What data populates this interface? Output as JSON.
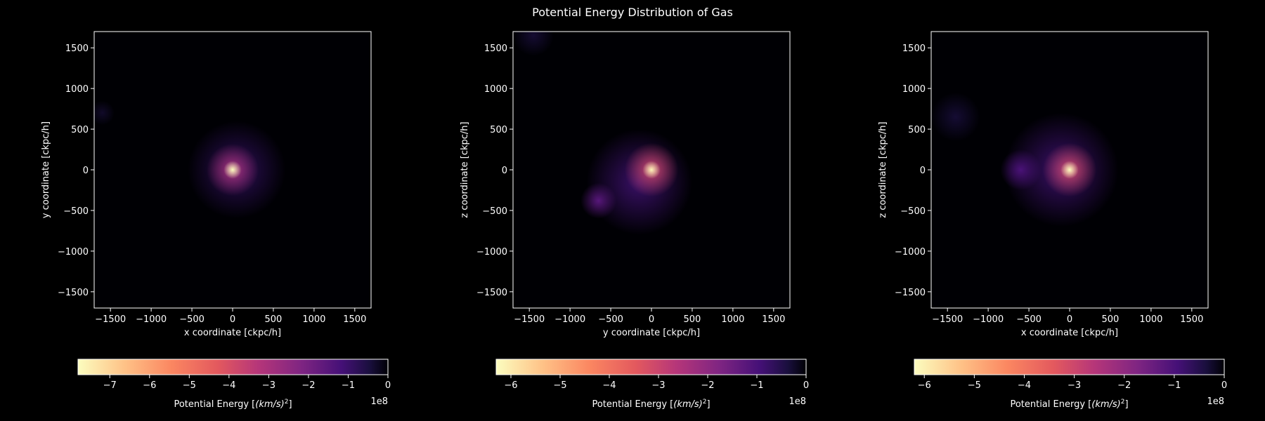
{
  "figure": {
    "title": "Potential Energy Distribution of Gas",
    "background": "#000000",
    "colormap": "magma"
  },
  "chart_data": [
    {
      "type": "heatmap",
      "xlabel": "x coordinate [ckpc/h]",
      "ylabel": "y coordinate [ckpc/h]",
      "xlim": [
        -1700,
        1700
      ],
      "ylim": [
        -1700,
        1700
      ],
      "xticks": [
        -1500,
        -1000,
        -500,
        0,
        500,
        1000,
        1500
      ],
      "yticks": [
        -1500,
        -1000,
        -500,
        0,
        500,
        1000,
        1500
      ],
      "grid": false,
      "blobs": [
        {
          "x": 0,
          "y": 0,
          "r": 110,
          "value": -7.8
        },
        {
          "x": 0,
          "y": 0,
          "r": 320,
          "value": -3.0
        },
        {
          "x": 50,
          "y": 0,
          "r": 600,
          "value": -0.8
        },
        {
          "x": -1600,
          "y": 700,
          "r": 150,
          "value": -0.3
        }
      ],
      "colorbar": {
        "label": "Potential Energy [$(km/s)^2$]",
        "label_text": "Potential Energy [",
        "label_italic": "(km/s)",
        "label_sup": "2",
        "label_close": "]",
        "min": -7.8,
        "max": 0,
        "ticks": [
          -7,
          -6,
          -5,
          -4,
          -3,
          -2,
          -1,
          0
        ],
        "multiplier": "1e8"
      }
    },
    {
      "type": "heatmap",
      "xlabel": "y coordinate [ckpc/h]",
      "ylabel": "z coordinate [ckpc/h]",
      "xlim": [
        -1700,
        1700
      ],
      "ylim": [
        -1700,
        1700
      ],
      "xticks": [
        -1500,
        -1000,
        -500,
        0,
        500,
        1000,
        1500
      ],
      "yticks": [
        -1500,
        -1000,
        -500,
        0,
        500,
        1000,
        1500
      ],
      "grid": false,
      "blobs": [
        {
          "x": 0,
          "y": 0,
          "r": 110,
          "value": -6.2
        },
        {
          "x": 0,
          "y": 0,
          "r": 330,
          "value": -3.0
        },
        {
          "x": -650,
          "y": -380,
          "r": 220,
          "value": -1.2
        },
        {
          "x": -150,
          "y": -150,
          "r": 650,
          "value": -0.8
        },
        {
          "x": -1450,
          "y": 1650,
          "r": 250,
          "value": -0.3
        }
      ],
      "colorbar": {
        "label": "Potential Energy [$(km/s)^2$]",
        "label_text": "Potential Energy [",
        "label_italic": "(km/s)",
        "label_sup": "2",
        "label_close": "]",
        "min": -6.3,
        "max": 0,
        "ticks": [
          -6,
          -5,
          -4,
          -3,
          -2,
          -1,
          0
        ],
        "multiplier": "1e8"
      }
    },
    {
      "type": "heatmap",
      "xlabel": "x coordinate [ckpc/h]",
      "ylabel": "z coordinate [ckpc/h]",
      "xlim": [
        -1700,
        1700
      ],
      "ylim": [
        -1700,
        1700
      ],
      "xticks": [
        -1500,
        -1000,
        -500,
        0,
        500,
        1000,
        1500
      ],
      "yticks": [
        -1500,
        -1000,
        -500,
        0,
        500,
        1000,
        1500
      ],
      "grid": false,
      "blobs": [
        {
          "x": 0,
          "y": 0,
          "r": 110,
          "value": -6.2
        },
        {
          "x": 0,
          "y": 0,
          "r": 330,
          "value": -3.0
        },
        {
          "x": -600,
          "y": 0,
          "r": 250,
          "value": -1.0
        },
        {
          "x": -100,
          "y": 0,
          "r": 700,
          "value": -0.8
        },
        {
          "x": -1400,
          "y": 650,
          "r": 300,
          "value": -0.3
        }
      ],
      "colorbar": {
        "label": "Potential Energy [$(km/s)^2$]",
        "label_text": "Potential Energy [",
        "label_italic": "(km/s)",
        "label_sup": "2",
        "label_close": "]",
        "min": -6.2,
        "max": 0,
        "ticks": [
          -6,
          -5,
          -4,
          -3,
          -2,
          -1,
          0
        ],
        "multiplier": "1e8"
      }
    }
  ]
}
